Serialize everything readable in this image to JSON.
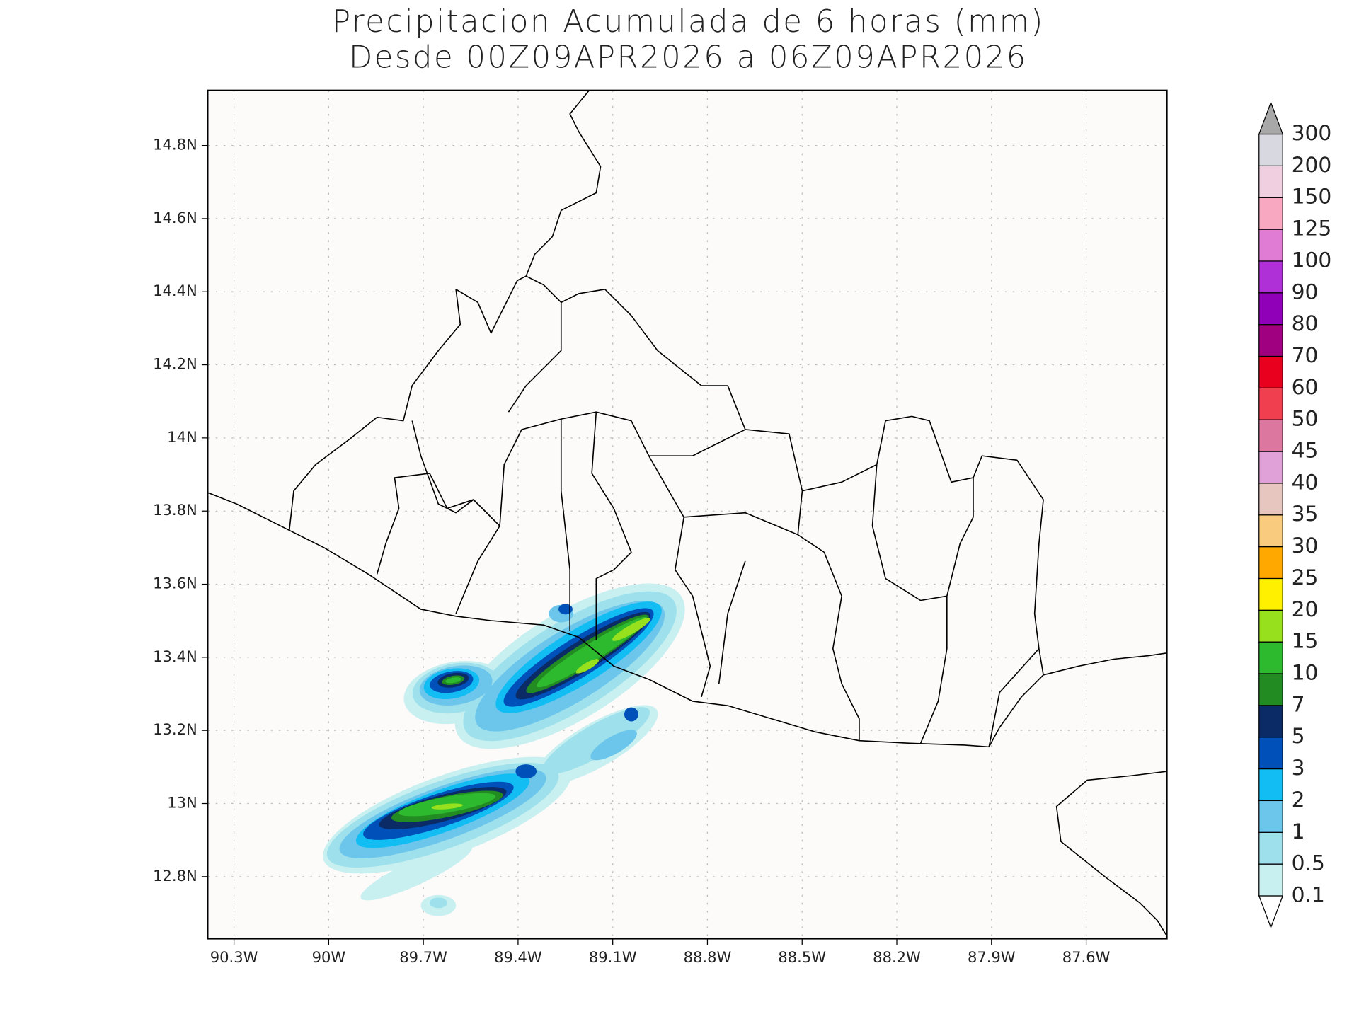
{
  "map": {
    "title": [
      "Precipitacion Acumulada de 6 horas (mm)",
      "Desde 00Z09APR2026 a 06Z09APR2026"
    ],
    "xlim": [
      -90.383,
      -87.344
    ],
    "ylim": [
      12.63,
      14.951
    ],
    "xticks": [
      {
        "value": -90.3,
        "label": "90.3W"
      },
      {
        "value": -90,
        "label": "90W"
      },
      {
        "value": -89.7,
        "label": "89.7W"
      },
      {
        "value": -89.4,
        "label": "89.4W"
      },
      {
        "value": -89.1,
        "label": "89.1W"
      },
      {
        "value": -88.8,
        "label": "88.8W"
      },
      {
        "value": -88.5,
        "label": "88.5W"
      },
      {
        "value": -88.2,
        "label": "88.2W"
      },
      {
        "value": -87.9,
        "label": "87.9W"
      },
      {
        "value": -87.6,
        "label": "87.6W"
      }
    ],
    "yticks": [
      {
        "value": 12.8,
        "label": "12.8N"
      },
      {
        "value": 13,
        "label": "13N"
      },
      {
        "value": 13.2,
        "label": "13.2N"
      },
      {
        "value": 13.4,
        "label": "13.4N"
      },
      {
        "value": 13.6,
        "label": "13.6N"
      },
      {
        "value": 13.8,
        "label": "13.8N"
      },
      {
        "value": 14,
        "label": "14N"
      },
      {
        "value": 14.2,
        "label": "14.2N"
      },
      {
        "value": 14.4,
        "label": "14.4N"
      },
      {
        "value": 14.6,
        "label": "14.6N"
      },
      {
        "value": 14.8,
        "label": "14.8N"
      }
    ],
    "grid": true,
    "colorbar": {
      "levels": [
        0.1,
        0.5,
        1,
        2,
        3,
        5,
        7,
        10,
        15,
        20,
        25,
        30,
        35,
        40,
        45,
        50,
        60,
        70,
        80,
        90,
        100,
        125,
        150,
        200,
        300
      ],
      "colors": [
        "#ffffff",
        "#c8f0f0",
        "#9ee0ec",
        "#6cc6ec",
        "#12bdf3",
        "#0050b9",
        "#0a2b66",
        "#228b22",
        "#2eba2e",
        "#96e01e",
        "#fff000",
        "#ffa800",
        "#f8cb7e",
        "#e8c6c0",
        "#e0a0d8",
        "#dc78a0",
        "#f04050",
        "#e8001e",
        "#a00080",
        "#9000b8",
        "#b030d8",
        "#e07cd4",
        "#f8a8c0",
        "#f0d0e0",
        "#d8d8e0",
        "#a8a8a8"
      ]
    }
  }
}
